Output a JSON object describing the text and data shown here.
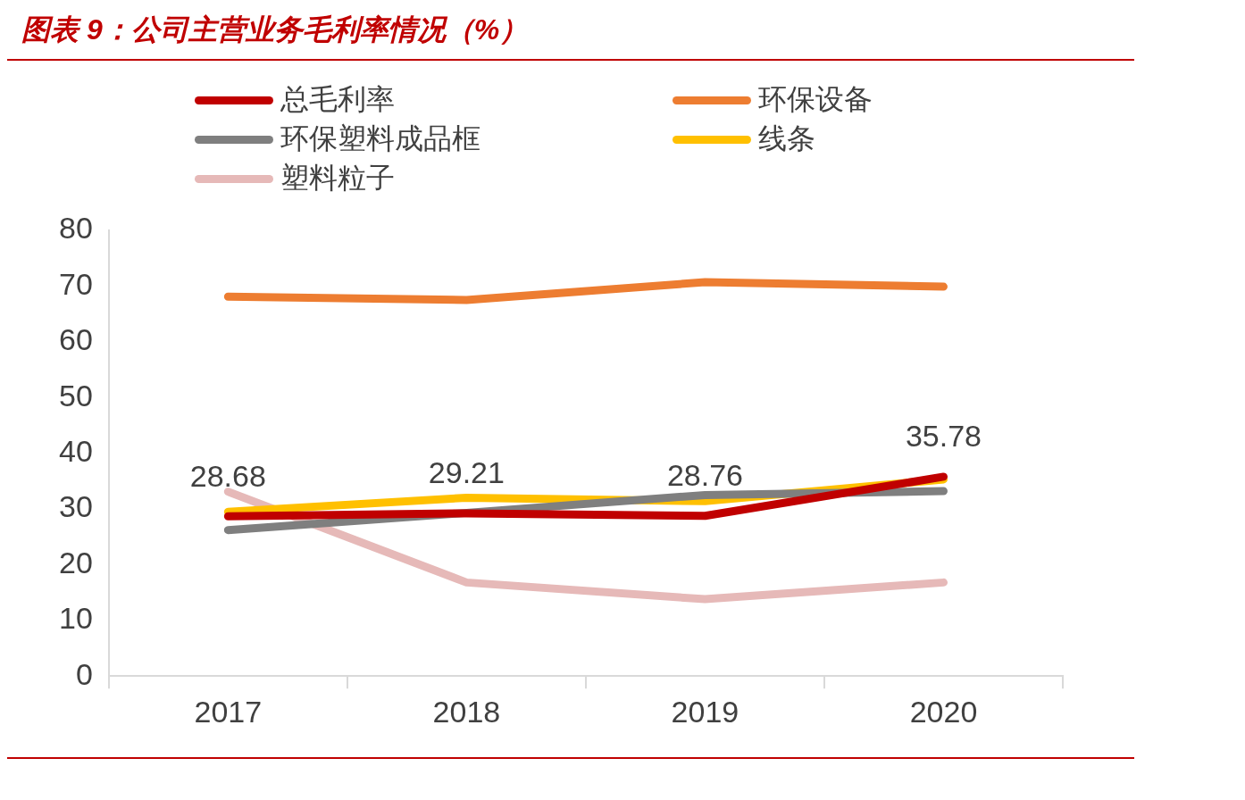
{
  "chart_data": {
    "type": "line",
    "title": "图表 9：公司主营业务毛利率情况（%）",
    "categories": [
      "2017",
      "2018",
      "2019",
      "2020"
    ],
    "series": [
      {
        "name": "总毛利率",
        "color": "#c00000",
        "values": [
          28.68,
          29.21,
          28.76,
          35.78
        ],
        "value_labels": [
          "28.68",
          "29.21",
          "28.76",
          "35.78"
        ]
      },
      {
        "name": "环保设备",
        "color": "#ed7d31",
        "values": [
          68.1,
          67.5,
          70.7,
          69.9
        ]
      },
      {
        "name": "环保塑料成品框",
        "color": "#7f7f7f",
        "values": [
          26.2,
          29.3,
          32.5,
          33.2
        ]
      },
      {
        "name": "线条",
        "color": "#ffc000",
        "values": [
          29.5,
          32.0,
          31.4,
          35.3
        ]
      },
      {
        "name": "塑料粒子",
        "color": "#e6b9b8",
        "values": [
          33.1,
          16.8,
          13.8,
          16.8
        ]
      }
    ],
    "ylim": [
      0,
      80
    ],
    "yticks": [
      0,
      10,
      20,
      30,
      40,
      50,
      60,
      70,
      80
    ],
    "grid": false,
    "legend": "top",
    "marker": "none"
  }
}
